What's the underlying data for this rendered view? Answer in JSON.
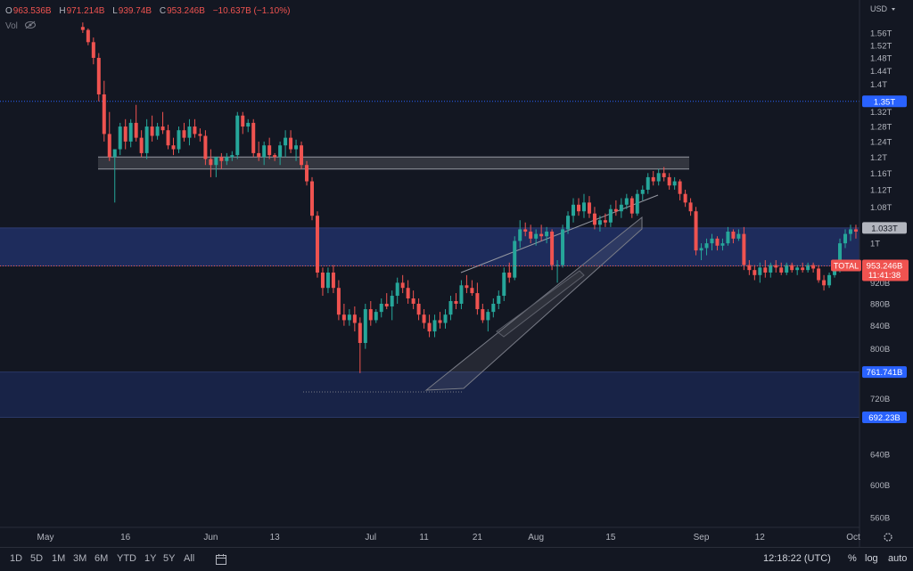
{
  "legend": {
    "open_key": "O",
    "open": "963.536B",
    "high_key": "H",
    "high": "971.214B",
    "low_key": "L",
    "low": "939.74B",
    "close_key": "C",
    "close": "953.246B",
    "change": "−10.637B (−1.10%)",
    "vol_label": "Vol",
    "vol_icon": "eye-off-icon"
  },
  "currency": "USD",
  "colors": {
    "up": "#26a69a",
    "down": "#ef5350",
    "zone": "#1e2c5c",
    "blue_label": "#2962ff",
    "price_label": "#f05350"
  },
  "price_labels": {
    "level_135": "1.35T",
    "level_1033": "1.033T",
    "total_name": "TOTAL",
    "total_price": "953.246B",
    "countdown": "11:41:38",
    "level_761": "761.741B",
    "level_692": "692.23B"
  },
  "bottom_bar": {
    "timeframes": [
      "1D",
      "5D",
      "1M",
      "3M",
      "6M",
      "YTD",
      "1Y",
      "5Y",
      "All"
    ],
    "calendar_icon": "calendar-range-icon",
    "time": "12:18:22 (UTC)",
    "percent": "%",
    "log": "log",
    "auto": "auto"
  },
  "chart_data": {
    "type": "candlestick",
    "symbol": "TOTAL",
    "y_unit": "USD",
    "y_ticks": [
      "1.56T",
      "1.52T",
      "1.48T",
      "1.44T",
      "1.4T",
      "1.32T",
      "1.28T",
      "1.24T",
      "1.2T",
      "1.16T",
      "1.12T",
      "1.08T",
      "1T",
      "920B",
      "880B",
      "840B",
      "800B",
      "720B",
      "640B",
      "600B",
      "560B"
    ],
    "x_ticks": [
      "May",
      "16",
      "Jun",
      "13",
      "Jul",
      "11",
      "21",
      "Aug",
      "15",
      "Sep",
      "12",
      "Oct"
    ],
    "ylim": [
      520000000000,
      1590000000000
    ],
    "zones": [
      {
        "from": 1170000000000,
        "to": 1200000000000
      },
      {
        "from": 953246000000,
        "to": 1033000000000
      },
      {
        "from": 692230000000,
        "to": 761741000000
      }
    ],
    "horizontal_lines": [
      1350000000000
    ],
    "ohlc": [
      {
        "date": "2022-05-08",
        "o": 1580,
        "h": 1595,
        "l": 1560,
        "c": 1570
      },
      {
        "date": "2022-05-09",
        "o": 1570,
        "h": 1575,
        "l": 1520,
        "c": 1530
      },
      {
        "date": "2022-05-10",
        "o": 1530,
        "h": 1545,
        "l": 1460,
        "c": 1480
      },
      {
        "date": "2022-05-11",
        "o": 1480,
        "h": 1495,
        "l": 1350,
        "c": 1370
      },
      {
        "date": "2022-05-12",
        "o": 1370,
        "h": 1410,
        "l": 1240,
        "c": 1260
      },
      {
        "date": "2022-05-13",
        "o": 1260,
        "h": 1320,
        "l": 1190,
        "c": 1200
      },
      {
        "date": "2022-05-14",
        "o": 1200,
        "h": 1220,
        "l": 1090,
        "c": 1220
      },
      {
        "date": "2022-05-15",
        "o": 1220,
        "h": 1290,
        "l": 1205,
        "c": 1280
      },
      {
        "date": "2022-05-16",
        "o": 1280,
        "h": 1300,
        "l": 1220,
        "c": 1240
      },
      {
        "date": "2022-05-17",
        "o": 1240,
        "h": 1300,
        "l": 1225,
        "c": 1290
      },
      {
        "date": "2022-05-18",
        "o": 1290,
        "h": 1340,
        "l": 1240,
        "c": 1250
      },
      {
        "date": "2022-05-19",
        "o": 1250,
        "h": 1270,
        "l": 1200,
        "c": 1210
      },
      {
        "date": "2022-05-20",
        "o": 1210,
        "h": 1300,
        "l": 1195,
        "c": 1280
      },
      {
        "date": "2022-05-21",
        "o": 1280,
        "h": 1310,
        "l": 1240,
        "c": 1255
      },
      {
        "date": "2022-05-22",
        "o": 1255,
        "h": 1290,
        "l": 1245,
        "c": 1280
      },
      {
        "date": "2022-05-23",
        "o": 1280,
        "h": 1320,
        "l": 1260,
        "c": 1270
      },
      {
        "date": "2022-05-24",
        "o": 1270,
        "h": 1285,
        "l": 1220,
        "c": 1230
      },
      {
        "date": "2022-05-25",
        "o": 1230,
        "h": 1250,
        "l": 1205,
        "c": 1220
      },
      {
        "date": "2022-05-26",
        "o": 1220,
        "h": 1280,
        "l": 1210,
        "c": 1270
      },
      {
        "date": "2022-05-27",
        "o": 1270,
        "h": 1290,
        "l": 1240,
        "c": 1250
      },
      {
        "date": "2022-05-28",
        "o": 1250,
        "h": 1300,
        "l": 1230,
        "c": 1280
      },
      {
        "date": "2022-05-29",
        "o": 1280,
        "h": 1300,
        "l": 1250,
        "c": 1260
      },
      {
        "date": "2022-05-30",
        "o": 1260,
        "h": 1275,
        "l": 1240,
        "c": 1255
      },
      {
        "date": "2022-05-31",
        "o": 1255,
        "h": 1270,
        "l": 1180,
        "c": 1195
      },
      {
        "date": "2022-06-01",
        "o": 1195,
        "h": 1220,
        "l": 1150,
        "c": 1180
      },
      {
        "date": "2022-06-02",
        "o": 1180,
        "h": 1200,
        "l": 1150,
        "c": 1200
      },
      {
        "date": "2022-06-03",
        "o": 1200,
        "h": 1210,
        "l": 1170,
        "c": 1190
      },
      {
        "date": "2022-06-04",
        "o": 1190,
        "h": 1210,
        "l": 1180,
        "c": 1200
      },
      {
        "date": "2022-06-05",
        "o": 1200,
        "h": 1215,
        "l": 1190,
        "c": 1205
      },
      {
        "date": "2022-06-06",
        "o": 1205,
        "h": 1320,
        "l": 1195,
        "c": 1310
      },
      {
        "date": "2022-06-07",
        "o": 1310,
        "h": 1320,
        "l": 1260,
        "c": 1280
      },
      {
        "date": "2022-06-08",
        "o": 1280,
        "h": 1300,
        "l": 1265,
        "c": 1290
      },
      {
        "date": "2022-06-09",
        "o": 1290,
        "h": 1300,
        "l": 1200,
        "c": 1210
      },
      {
        "date": "2022-06-10",
        "o": 1210,
        "h": 1240,
        "l": 1190,
        "c": 1200
      },
      {
        "date": "2022-06-11",
        "o": 1200,
        "h": 1240,
        "l": 1180,
        "c": 1230
      },
      {
        "date": "2022-06-12",
        "o": 1230,
        "h": 1250,
        "l": 1195,
        "c": 1205
      },
      {
        "date": "2022-06-13",
        "o": 1205,
        "h": 1210,
        "l": 1190,
        "c": 1200
      },
      {
        "date": "2022-06-14",
        "o": 1200,
        "h": 1240,
        "l": 1180,
        "c": 1230
      },
      {
        "date": "2022-06-15",
        "o": 1230,
        "h": 1270,
        "l": 1200,
        "c": 1250
      },
      {
        "date": "2022-06-16",
        "o": 1250,
        "h": 1270,
        "l": 1210,
        "c": 1220
      },
      {
        "date": "2022-06-17",
        "o": 1220,
        "h": 1245,
        "l": 1190,
        "c": 1230
      },
      {
        "date": "2022-06-18",
        "o": 1230,
        "h": 1240,
        "l": 1170,
        "c": 1180
      },
      {
        "date": "2022-06-19",
        "o": 1180,
        "h": 1190,
        "l": 1130,
        "c": 1140
      },
      {
        "date": "2022-06-20",
        "o": 1140,
        "h": 1150,
        "l": 1050,
        "c": 1060
      },
      {
        "date": "2022-06-21",
        "o": 1060,
        "h": 1070,
        "l": 930,
        "c": 940
      },
      {
        "date": "2022-06-22",
        "o": 940,
        "h": 950,
        "l": 895,
        "c": 910
      },
      {
        "date": "2022-06-23",
        "o": 910,
        "h": 950,
        "l": 900,
        "c": 940
      },
      {
        "date": "2022-06-24",
        "o": 940,
        "h": 955,
        "l": 900,
        "c": 910
      },
      {
        "date": "2022-06-25",
        "o": 910,
        "h": 925,
        "l": 850,
        "c": 860
      },
      {
        "date": "2022-06-26",
        "o": 860,
        "h": 880,
        "l": 840,
        "c": 850
      },
      {
        "date": "2022-06-27",
        "o": 850,
        "h": 870,
        "l": 840,
        "c": 860
      },
      {
        "date": "2022-06-28",
        "o": 860,
        "h": 875,
        "l": 830,
        "c": 845
      },
      {
        "date": "2022-06-29",
        "o": 845,
        "h": 855,
        "l": 760,
        "c": 810
      },
      {
        "date": "2022-06-30",
        "o": 810,
        "h": 880,
        "l": 800,
        "c": 870
      },
      {
        "date": "2022-07-01",
        "o": 870,
        "h": 885,
        "l": 840,
        "c": 850
      },
      {
        "date": "2022-07-02",
        "o": 850,
        "h": 870,
        "l": 845,
        "c": 865
      },
      {
        "date": "2022-07-03",
        "o": 865,
        "h": 890,
        "l": 855,
        "c": 880
      },
      {
        "date": "2022-07-04",
        "o": 880,
        "h": 900,
        "l": 870,
        "c": 875
      },
      {
        "date": "2022-07-05",
        "o": 875,
        "h": 905,
        "l": 850,
        "c": 895
      },
      {
        "date": "2022-07-06",
        "o": 895,
        "h": 930,
        "l": 880,
        "c": 920
      },
      {
        "date": "2022-07-07",
        "o": 920,
        "h": 935,
        "l": 900,
        "c": 910
      },
      {
        "date": "2022-07-08",
        "o": 910,
        "h": 925,
        "l": 880,
        "c": 890
      },
      {
        "date": "2022-07-09",
        "o": 890,
        "h": 905,
        "l": 870,
        "c": 880
      },
      {
        "date": "2022-07-10",
        "o": 880,
        "h": 890,
        "l": 850,
        "c": 860
      },
      {
        "date": "2022-07-11",
        "o": 860,
        "h": 870,
        "l": 835,
        "c": 845
      },
      {
        "date": "2022-07-12",
        "o": 845,
        "h": 860,
        "l": 820,
        "c": 830
      },
      {
        "date": "2022-07-13",
        "o": 830,
        "h": 860,
        "l": 820,
        "c": 850
      },
      {
        "date": "2022-07-14",
        "o": 850,
        "h": 865,
        "l": 835,
        "c": 845
      },
      {
        "date": "2022-07-15",
        "o": 845,
        "h": 870,
        "l": 835,
        "c": 860
      },
      {
        "date": "2022-07-16",
        "o": 860,
        "h": 895,
        "l": 850,
        "c": 885
      },
      {
        "date": "2022-07-17",
        "o": 885,
        "h": 900,
        "l": 870,
        "c": 880
      },
      {
        "date": "2022-07-18",
        "o": 880,
        "h": 925,
        "l": 870,
        "c": 915
      },
      {
        "date": "2022-07-19",
        "o": 915,
        "h": 935,
        "l": 900,
        "c": 910
      },
      {
        "date": "2022-07-20",
        "o": 910,
        "h": 925,
        "l": 895,
        "c": 900
      },
      {
        "date": "2022-07-21",
        "o": 900,
        "h": 920,
        "l": 860,
        "c": 870
      },
      {
        "date": "2022-07-22",
        "o": 870,
        "h": 880,
        "l": 845,
        "c": 850
      },
      {
        "date": "2022-07-23",
        "o": 850,
        "h": 870,
        "l": 830,
        "c": 865
      },
      {
        "date": "2022-07-24",
        "o": 865,
        "h": 890,
        "l": 855,
        "c": 880
      },
      {
        "date": "2022-07-25",
        "o": 880,
        "h": 905,
        "l": 870,
        "c": 895
      },
      {
        "date": "2022-07-26",
        "o": 895,
        "h": 950,
        "l": 885,
        "c": 940
      },
      {
        "date": "2022-07-27",
        "o": 940,
        "h": 960,
        "l": 920,
        "c": 930
      },
      {
        "date": "2022-07-28",
        "o": 930,
        "h": 1015,
        "l": 925,
        "c": 1005
      },
      {
        "date": "2022-07-29",
        "o": 1005,
        "h": 1050,
        "l": 990,
        "c": 1030
      },
      {
        "date": "2022-07-30",
        "o": 1030,
        "h": 1045,
        "l": 1015,
        "c": 1025
      },
      {
        "date": "2022-07-31",
        "o": 1025,
        "h": 1040,
        "l": 1000,
        "c": 1010
      },
      {
        "date": "2022-08-01",
        "o": 1010,
        "h": 1030,
        "l": 995,
        "c": 1020
      },
      {
        "date": "2022-08-02",
        "o": 1020,
        "h": 1040,
        "l": 1005,
        "c": 1015
      },
      {
        "date": "2022-08-03",
        "o": 1015,
        "h": 1035,
        "l": 1000,
        "c": 1025
      },
      {
        "date": "2022-08-04",
        "o": 1025,
        "h": 1030,
        "l": 945,
        "c": 955
      },
      {
        "date": "2022-08-05",
        "o": 955,
        "h": 965,
        "l": 920,
        "c": 955
      },
      {
        "date": "2022-08-06",
        "o": 955,
        "h": 1040,
        "l": 950,
        "c": 1030
      },
      {
        "date": "2022-08-07",
        "o": 1030,
        "h": 1070,
        "l": 1020,
        "c": 1060
      },
      {
        "date": "2022-08-08",
        "o": 1060,
        "h": 1100,
        "l": 1045,
        "c": 1085
      },
      {
        "date": "2022-08-09",
        "o": 1085,
        "h": 1100,
        "l": 1060,
        "c": 1070
      },
      {
        "date": "2022-08-10",
        "o": 1070,
        "h": 1110,
        "l": 1055,
        "c": 1090
      },
      {
        "date": "2022-08-11",
        "o": 1090,
        "h": 1105,
        "l": 1055,
        "c": 1065
      },
      {
        "date": "2022-08-12",
        "o": 1065,
        "h": 1080,
        "l": 1030,
        "c": 1040
      },
      {
        "date": "2022-08-13",
        "o": 1040,
        "h": 1060,
        "l": 1025,
        "c": 1050
      },
      {
        "date": "2022-08-14",
        "o": 1050,
        "h": 1065,
        "l": 1035,
        "c": 1045
      },
      {
        "date": "2022-08-15",
        "o": 1045,
        "h": 1085,
        "l": 1035,
        "c": 1075
      },
      {
        "date": "2022-08-16",
        "o": 1075,
        "h": 1095,
        "l": 1060,
        "c": 1070
      },
      {
        "date": "2022-08-17",
        "o": 1070,
        "h": 1100,
        "l": 1055,
        "c": 1085
      },
      {
        "date": "2022-08-18",
        "o": 1085,
        "h": 1110,
        "l": 1075,
        "c": 1100
      },
      {
        "date": "2022-08-19",
        "o": 1100,
        "h": 1105,
        "l": 1055,
        "c": 1065
      },
      {
        "date": "2022-08-20",
        "o": 1065,
        "h": 1120,
        "l": 1060,
        "c": 1110
      },
      {
        "date": "2022-08-21",
        "o": 1110,
        "h": 1130,
        "l": 1095,
        "c": 1120
      },
      {
        "date": "2022-08-22",
        "o": 1120,
        "h": 1160,
        "l": 1110,
        "c": 1150
      },
      {
        "date": "2022-08-23",
        "o": 1150,
        "h": 1165,
        "l": 1130,
        "c": 1140
      },
      {
        "date": "2022-08-24",
        "o": 1140,
        "h": 1170,
        "l": 1130,
        "c": 1160
      },
      {
        "date": "2022-08-25",
        "o": 1160,
        "h": 1175,
        "l": 1140,
        "c": 1150
      },
      {
        "date": "2022-08-26",
        "o": 1150,
        "h": 1160,
        "l": 1120,
        "c": 1130
      },
      {
        "date": "2022-08-27",
        "o": 1130,
        "h": 1150,
        "l": 1120,
        "c": 1140
      },
      {
        "date": "2022-08-28",
        "o": 1140,
        "h": 1145,
        "l": 1095,
        "c": 1110
      },
      {
        "date": "2022-08-29",
        "o": 1110,
        "h": 1120,
        "l": 1080,
        "c": 1090
      },
      {
        "date": "2022-08-30",
        "o": 1090,
        "h": 1100,
        "l": 1060,
        "c": 1070
      },
      {
        "date": "2022-08-31",
        "o": 1070,
        "h": 1080,
        "l": 975,
        "c": 985
      },
      {
        "date": "2022-09-01",
        "o": 985,
        "h": 1000,
        "l": 965,
        "c": 990
      },
      {
        "date": "2022-09-02",
        "o": 990,
        "h": 1010,
        "l": 975,
        "c": 1000
      },
      {
        "date": "2022-09-03",
        "o": 1000,
        "h": 1020,
        "l": 985,
        "c": 1010
      },
      {
        "date": "2022-09-04",
        "o": 1010,
        "h": 1015,
        "l": 985,
        "c": 995
      },
      {
        "date": "2022-09-05",
        "o": 995,
        "h": 1010,
        "l": 985,
        "c": 1000
      },
      {
        "date": "2022-09-06",
        "o": 1000,
        "h": 1035,
        "l": 995,
        "c": 1025
      },
      {
        "date": "2022-09-07",
        "o": 1025,
        "h": 1030,
        "l": 1000,
        "c": 1010
      },
      {
        "date": "2022-09-08",
        "o": 1010,
        "h": 1030,
        "l": 1005,
        "c": 1020
      },
      {
        "date": "2022-09-09",
        "o": 1020,
        "h": 1035,
        "l": 945,
        "c": 955
      },
      {
        "date": "2022-09-10",
        "o": 955,
        "h": 965,
        "l": 935,
        "c": 945
      },
      {
        "date": "2022-09-11",
        "o": 945,
        "h": 955,
        "l": 925,
        "c": 935
      },
      {
        "date": "2022-09-12",
        "o": 935,
        "h": 960,
        "l": 920,
        "c": 950
      },
      {
        "date": "2022-09-13",
        "o": 950,
        "h": 965,
        "l": 930,
        "c": 940
      },
      {
        "date": "2022-09-14",
        "o": 940,
        "h": 960,
        "l": 930,
        "c": 955
      },
      {
        "date": "2022-09-15",
        "o": 955,
        "h": 965,
        "l": 940,
        "c": 950
      },
      {
        "date": "2022-09-16",
        "o": 950,
        "h": 960,
        "l": 935,
        "c": 940
      },
      {
        "date": "2022-09-17",
        "o": 940,
        "h": 960,
        "l": 935,
        "c": 955
      },
      {
        "date": "2022-09-18",
        "o": 955,
        "h": 960,
        "l": 940,
        "c": 945
      },
      {
        "date": "2022-09-19",
        "o": 945,
        "h": 955,
        "l": 935,
        "c": 950
      },
      {
        "date": "2022-09-20",
        "o": 950,
        "h": 960,
        "l": 940,
        "c": 945
      },
      {
        "date": "2022-09-21",
        "o": 945,
        "h": 960,
        "l": 940,
        "c": 955
      },
      {
        "date": "2022-09-22",
        "o": 955,
        "h": 960,
        "l": 940,
        "c": 948
      },
      {
        "date": "2022-09-23",
        "o": 948,
        "h": 955,
        "l": 920,
        "c": 925
      },
      {
        "date": "2022-09-24",
        "o": 925,
        "h": 935,
        "l": 905,
        "c": 915
      },
      {
        "date": "2022-09-25",
        "o": 915,
        "h": 940,
        "l": 910,
        "c": 935
      },
      {
        "date": "2022-09-26",
        "o": 935,
        "h": 955,
        "l": 930,
        "c": 945
      },
      {
        "date": "2022-09-27",
        "o": 945,
        "h": 1010,
        "l": 940,
        "c": 1000
      },
      {
        "date": "2022-09-28",
        "o": 1000,
        "h": 1030,
        "l": 990,
        "c": 1020
      },
      {
        "date": "2022-09-29",
        "o": 1020,
        "h": 1040,
        "l": 1005,
        "c": 1030
      },
      {
        "date": "2022-09-30",
        "o": 1030,
        "h": 1040,
        "l": 1010,
        "c": 1025
      },
      {
        "date": "2022-10-01",
        "o": 1025,
        "h": 1045,
        "l": 1020,
        "c": 1030
      },
      {
        "date": "2022-10-02",
        "o": 1030,
        "h": 1035,
        "l": 940,
        "c": 950
      },
      {
        "date": "2022-10-03",
        "o": 950,
        "h": 970,
        "l": 935,
        "c": 960
      },
      {
        "date": "2022-10-04",
        "o": 963.536,
        "h": 971.214,
        "l": 939.74,
        "c": 953.246
      }
    ]
  }
}
